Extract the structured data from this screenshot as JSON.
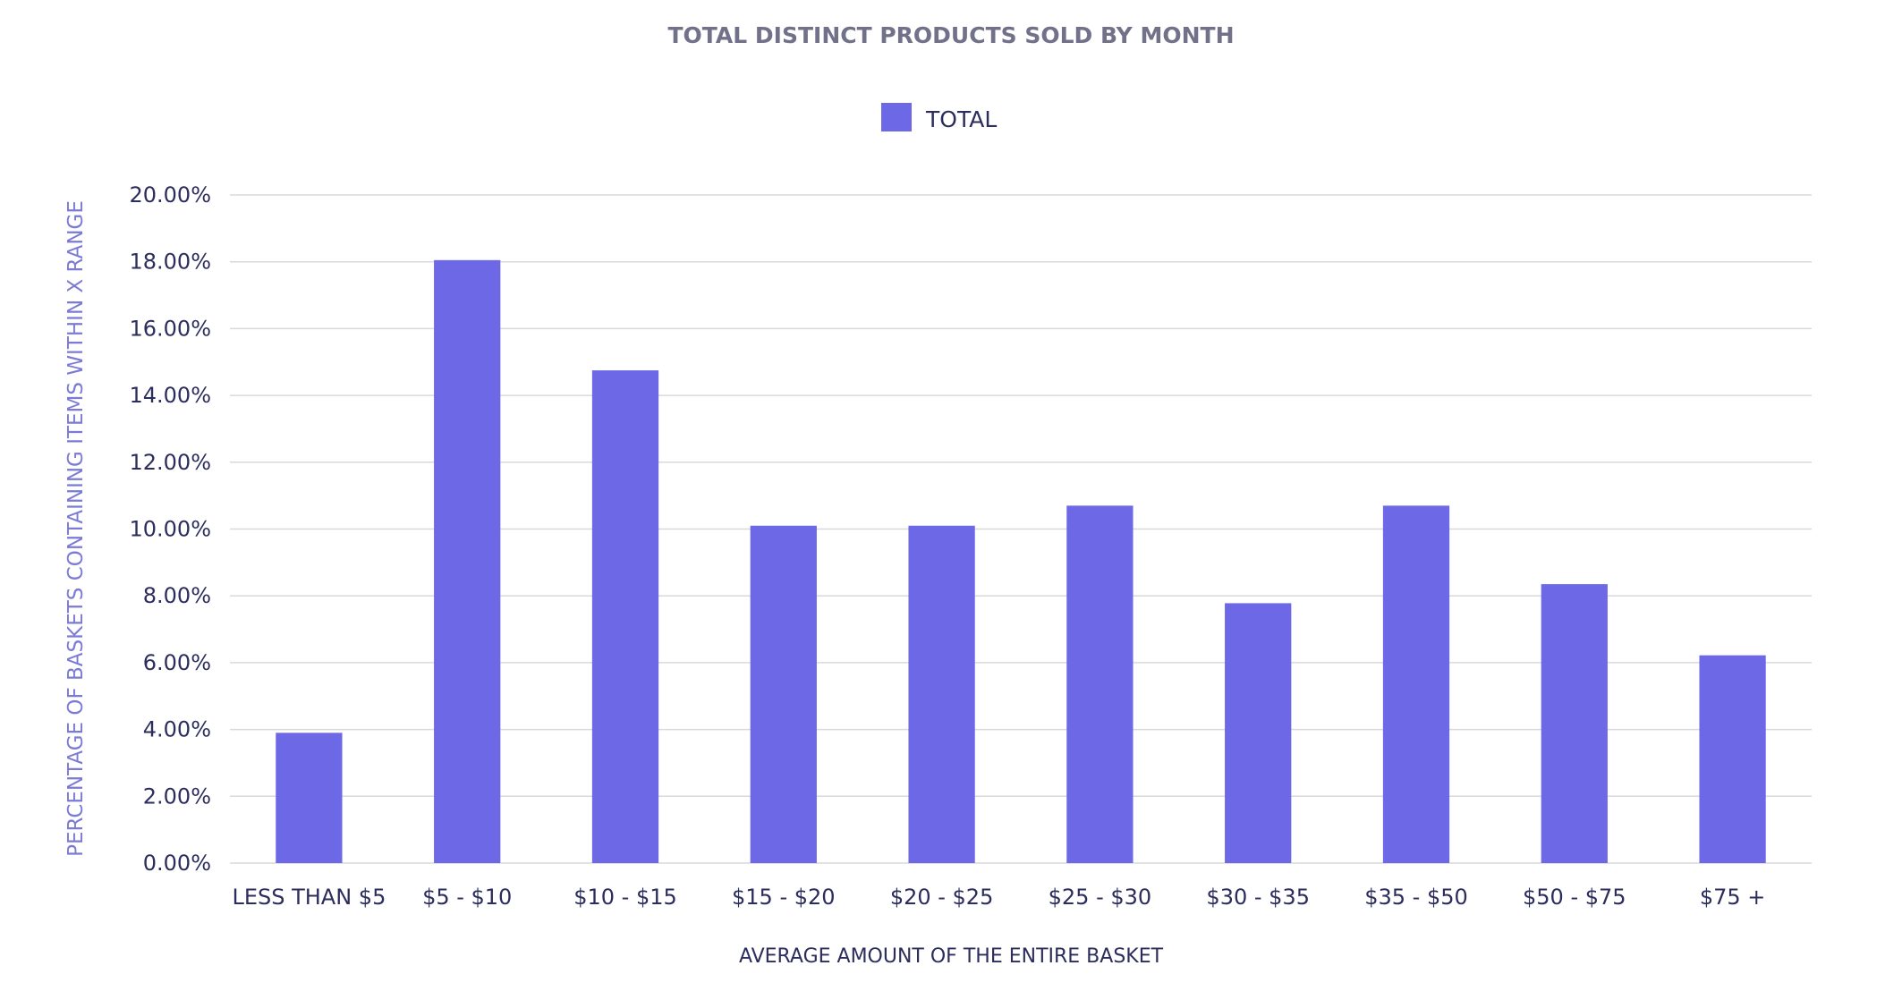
{
  "chart_data": {
    "type": "bar",
    "title": "TOTAL DISTINCT PRODUCTS SOLD BY MONTH",
    "xlabel": "AVERAGE AMOUNT OF THE ENTIRE BASKET",
    "ylabel": "PERCENTAGE OF BASKETS CONTAINING ITEMS WITHIN X RANGE",
    "categories": [
      "LESS THAN $5",
      "$5 - $10",
      "$10 - $15",
      "$15 - $20",
      "$20 - $25",
      "$25 - $30",
      "$30 - $35",
      "$35 - $50",
      "$50 - $75",
      "$75 +"
    ],
    "series": [
      {
        "name": "TOTAL",
        "color": "#6c68e6",
        "values": [
          3.9,
          18.05,
          14.75,
          10.1,
          10.1,
          10.7,
          7.78,
          10.7,
          8.35,
          6.22
        ]
      }
    ],
    "ylim": [
      0,
      20
    ],
    "yticks": [
      "0.00%",
      "2.00%",
      "4.00%",
      "6.00%",
      "8.00%",
      "10.00%",
      "12.00%",
      "14.00%",
      "16.00%",
      "18.00%",
      "20.00%"
    ],
    "ytick_values": [
      0,
      2,
      4,
      6,
      8,
      10,
      12,
      14,
      16,
      18,
      20
    ],
    "grid": true,
    "legend_position": "top-center"
  }
}
